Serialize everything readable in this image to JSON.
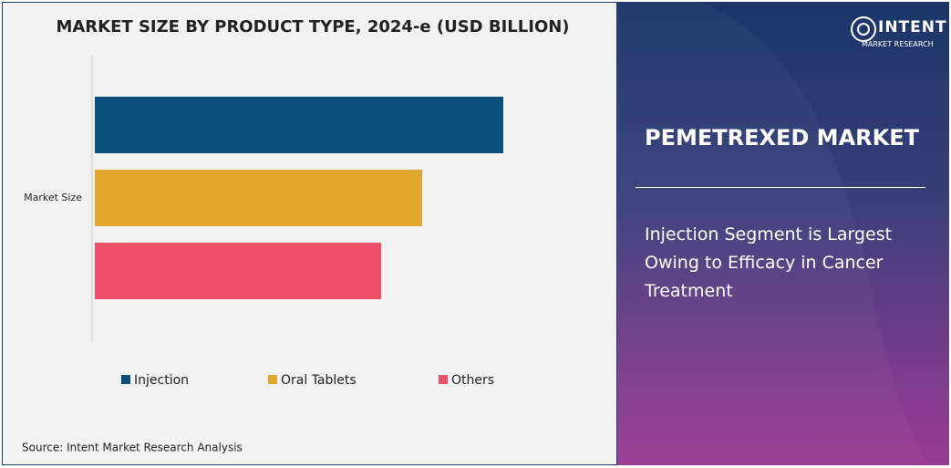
{
  "chart_data": {
    "type": "bar",
    "orientation": "horizontal",
    "title": "MARKET SIZE BY PRODUCT TYPE, 2024-e (USD BILLION)",
    "categories": [
      "Market Size"
    ],
    "series": [
      {
        "name": "Injection",
        "color": "#0d4f7c",
        "values": [
          4.48
        ]
      },
      {
        "name": "Oral Tablets",
        "color": "#e3a72f",
        "values": [
          3.59
        ]
      },
      {
        "name": "Others",
        "color": "#f0506a",
        "values": [
          3.14
        ]
      }
    ],
    "legend": "bottom"
  },
  "source": "Source: Intent Market Research Analysis",
  "panel": {
    "logo": "INTENT",
    "logo_sub": "MARKET RESEARCH",
    "title": "PEMETREXED MARKET",
    "headline": "Injection Segment is Largest Owing to Efficacy in Cancer Treatment"
  }
}
